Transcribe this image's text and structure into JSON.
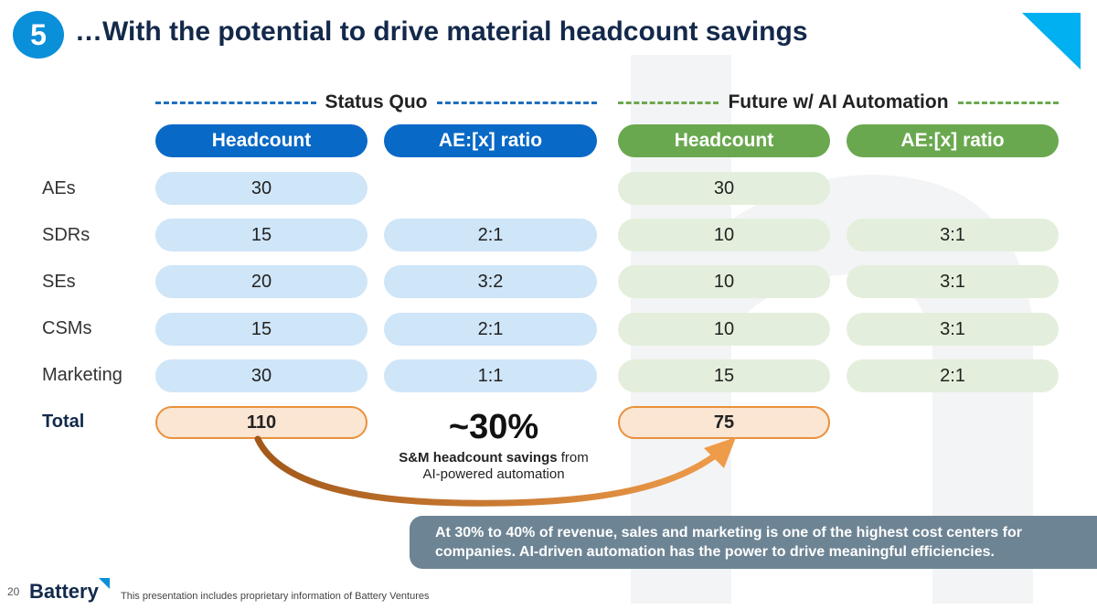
{
  "slide": {
    "number": "5",
    "title": "…With the potential to drive material headcount savings"
  },
  "sections": {
    "status_quo": "Status Quo",
    "future": "Future w/ AI Automation"
  },
  "columns": [
    "Headcount",
    "AE:[x] ratio",
    "Headcount",
    "AE:[x] ratio"
  ],
  "rows": [
    {
      "label": "AEs",
      "sq_headcount": "30",
      "sq_ratio": "",
      "fut_headcount": "30",
      "fut_ratio": ""
    },
    {
      "label": "SDRs",
      "sq_headcount": "15",
      "sq_ratio": "2:1",
      "fut_headcount": "10",
      "fut_ratio": "3:1"
    },
    {
      "label": "SEs",
      "sq_headcount": "20",
      "sq_ratio": "3:2",
      "fut_headcount": "10",
      "fut_ratio": "3:1"
    },
    {
      "label": "CSMs",
      "sq_headcount": "15",
      "sq_ratio": "2:1",
      "fut_headcount": "10",
      "fut_ratio": "3:1"
    },
    {
      "label": "Marketing",
      "sq_headcount": "30",
      "sq_ratio": "1:1",
      "fut_headcount": "15",
      "fut_ratio": "2:1"
    }
  ],
  "total": {
    "label": "Total",
    "sq_headcount": "110",
    "fut_headcount": "75"
  },
  "savings": {
    "percent": "~30%",
    "bold_text": "S&M headcount savings",
    "rest_text": " from",
    "line2": "AI-powered automation"
  },
  "note": "At 30% to 40% of revenue, sales and marketing is one of the highest cost centers for companies. AI-driven automation has the power to drive meaningful efficiencies.",
  "footer": {
    "page": "20",
    "logo": "Battery",
    "disclaimer": "This presentation includes proprietary information of Battery Ventures"
  },
  "colors": {
    "blue": "#0969c6",
    "green": "#6aa84f",
    "orange": "#e8913b",
    "navy": "#13294b"
  }
}
